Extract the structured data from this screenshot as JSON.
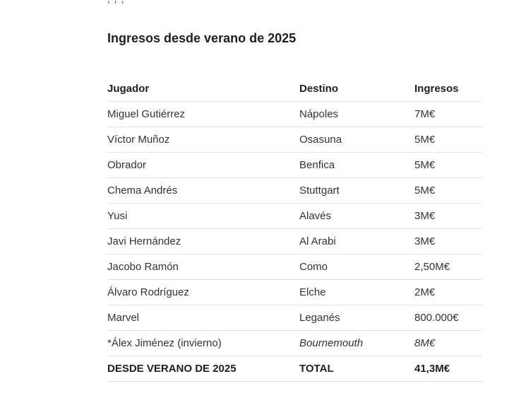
{
  "top_cut_text": "‚  ,  ‚",
  "title": "Ingresos desde verano de 2025",
  "table": {
    "headers": {
      "player": "Jugador",
      "destination": "Destino",
      "income": "Ingresos"
    },
    "rows": [
      {
        "player": "Miguel Gutiérrez",
        "destination": "Nápoles",
        "income": "7M€"
      },
      {
        "player": "Víctor Muñoz",
        "destination": "Osasuna",
        "income": "5M€"
      },
      {
        "player": "Obrador",
        "destination": "Benfica",
        "income": "5M€"
      },
      {
        "player": "Chema Andrés",
        "destination": "Stuttgart",
        "income": "5M€"
      },
      {
        "player": "Yusi",
        "destination": "Alavés",
        "income": "3M€"
      },
      {
        "player": "Javi Hernández",
        "destination": "Al Arabi",
        "income": "3M€"
      },
      {
        "player": "Jacobo Ramón",
        "destination": "Como",
        "income": "2,50M€"
      },
      {
        "player": "Álvaro Rodríguez",
        "destination": "Elche",
        "income": "2M€"
      },
      {
        "player": "Marvel",
        "destination": "Leganés",
        "income": "800.000€"
      },
      {
        "player": "*Álex Jiménez (invierno)",
        "destination": "Bournemouth",
        "income": "8M€"
      }
    ],
    "total": {
      "label": "DESDE VERANO DE 2025",
      "destination": "TOTAL",
      "income": "41,3M€"
    }
  }
}
